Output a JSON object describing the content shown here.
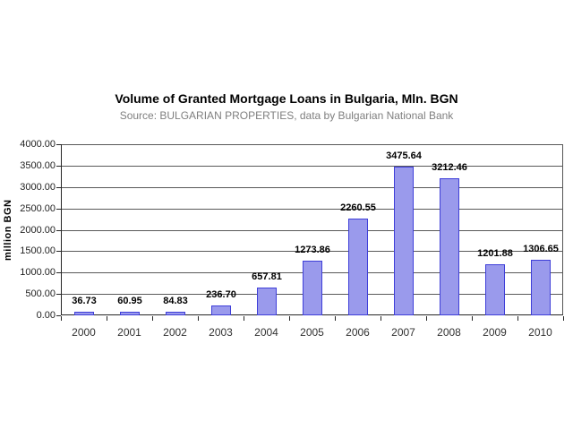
{
  "page": {
    "background_color": "#ffffff"
  },
  "chart_data": {
    "type": "bar",
    "title": "Volume of Granted Mortgage Loans in Bulgaria, Mln. BGN",
    "subtitle": "Source: BULGARIAN PROPERTIES, data by Bulgarian National Bank",
    "ylabel": "million BGN",
    "xlabel": "",
    "categories": [
      "2000",
      "2001",
      "2002",
      "2003",
      "2004",
      "2005",
      "2006",
      "2007",
      "2008",
      "2009",
      "2010"
    ],
    "values": [
      36.73,
      60.95,
      84.83,
      236.7,
      657.81,
      1273.86,
      2260.55,
      3475.64,
      3212.46,
      1201.88,
      1306.65
    ],
    "data_labels": [
      "36.73",
      "60.95",
      "84.83",
      "236.70",
      "657.81",
      "1273.86",
      "2260.55",
      "3475.64",
      "3212.46",
      "1201.88",
      "1306.65"
    ],
    "ylim": [
      0,
      4000
    ],
    "ytick_step": 500,
    "ytick_labels": [
      "0.00",
      "500.00",
      "1000.00",
      "1500.00",
      "2000.00",
      "2500.00",
      "3000.00",
      "3500.00",
      "4000.00"
    ],
    "grid": true,
    "legend_position": "none",
    "colors": {
      "bar_fill": "#9A9AEC",
      "bar_border": "#3E3ED8",
      "gridline": "#595959",
      "axis": "#262626",
      "title_text": "#000000",
      "subtitle_text": "#7F7F7F",
      "tick_text": "#1F1F1F",
      "category_text": "#333333",
      "value_label_text": "#000000"
    }
  }
}
